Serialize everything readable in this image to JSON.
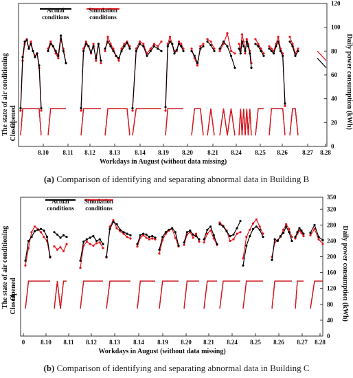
{
  "chart_data": [
    {
      "type": "line",
      "panel_id": "a",
      "caption_tag": "(a)",
      "caption_text": " Comparison of identifying and separating abnormal data in Building B",
      "xlabel": "Workdays in August (without data missing)",
      "ylabel": "Daily power consumption (kWh)",
      "state_label": "The state of air conditioning",
      "state_levels": [
        "Closed",
        "Opened"
      ],
      "x_tick_labels": [
        "8.10",
        "8.11",
        "8.12",
        "8.13",
        "8.14",
        "8.19",
        "8.20",
        "8.21",
        "8.24",
        "8.25",
        "8.26",
        "8.27",
        "8.28"
      ],
      "y_ticks": [
        0,
        20,
        40,
        60,
        80,
        100,
        120
      ],
      "ylim": [
        0,
        120
      ],
      "legend": [
        "Actual conditions",
        "Simulation conditions"
      ],
      "series_colors": {
        "actual": "#000000",
        "simulation": "#e8141c"
      },
      "day_power": {
        "actual": [
          [
            32,
            75,
            88,
            89,
            82,
            86,
            80,
            75,
            78,
            68,
            32
          ],
          [
            80,
            86,
            84,
            80,
            76,
            93,
            80,
            70
          ],
          [
            32,
            80,
            86,
            84,
            79,
            84,
            74,
            86,
            72
          ],
          [
            82,
            88,
            84,
            80,
            76,
            74,
            80,
            84,
            87,
            82
          ],
          [
            32,
            80,
            86,
            84,
            76,
            80,
            84,
            82,
            80
          ],
          [
            33,
            84,
            88,
            86,
            78,
            81,
            86,
            84,
            80
          ],
          [
            80,
            76,
            70,
            82,
            84
          ],
          [
            88,
            85,
            80
          ],
          [
            82,
            88,
            84,
            76,
            66
          ],
          [
            82,
            78,
            88,
            84,
            80,
            88,
            84,
            78,
            66
          ],
          [
            86,
            84,
            80,
            76
          ],
          [
            82,
            80,
            78,
            84,
            88,
            80,
            76,
            36
          ],
          [
            88,
            84,
            76,
            80
          ]
        ],
        "simulation": [
          [
            30,
            72,
            86,
            90,
            82,
            88,
            80,
            76,
            78,
            66,
            30
          ],
          [
            82,
            88,
            84,
            78,
            74,
            90,
            82,
            70
          ],
          [
            30,
            82,
            88,
            84,
            78,
            86,
            72,
            86,
            70
          ],
          [
            80,
            92,
            86,
            82,
            76,
            72,
            82,
            86,
            88,
            84
          ],
          [
            30,
            82,
            88,
            86,
            78,
            82,
            86,
            84,
            88
          ],
          [
            30,
            86,
            92,
            86,
            80,
            80,
            88,
            86,
            82
          ],
          [
            82,
            74,
            68,
            84,
            86
          ],
          [
            90,
            88,
            82
          ],
          [
            80,
            86,
            95,
            80,
            78
          ],
          [
            86,
            80,
            94,
            88,
            78,
            90,
            86,
            80,
            70
          ],
          [
            90,
            86,
            82,
            78
          ],
          [
            84,
            82,
            80,
            86,
            92,
            82,
            78,
            34
          ],
          [
            92,
            86,
            78,
            82
          ]
        ],
        "tail_actual": [
          74,
          66
        ],
        "tail_simulation": [
          80,
          72
        ]
      },
      "states": {
        "actual": [
          [
            0,
            1,
            1,
            1,
            1,
            1,
            1,
            1,
            1,
            1,
            0
          ],
          [
            0,
            1,
            1,
            1,
            1,
            1,
            1,
            1
          ],
          [
            0,
            1,
            1,
            1,
            1,
            1,
            1,
            1,
            1
          ],
          [
            0,
            1,
            1,
            1,
            1,
            1,
            1,
            1,
            1,
            0
          ],
          [
            0,
            1,
            1,
            1,
            1,
            1,
            1,
            1,
            1
          ],
          [
            0,
            1,
            1,
            1,
            1,
            1,
            1,
            1,
            1
          ],
          [
            0,
            1,
            1,
            1,
            0
          ],
          [
            0,
            1,
            0
          ],
          [
            0,
            1,
            0,
            1,
            0
          ],
          [
            0,
            1,
            0,
            1,
            0,
            1,
            0,
            1,
            0
          ],
          [
            0,
            1,
            1,
            1
          ],
          [
            0,
            1,
            1,
            1,
            1,
            1,
            1,
            0
          ],
          [
            0,
            1,
            1,
            0
          ]
        ],
        "simulation": [
          [
            0,
            1,
            1,
            1,
            1,
            1,
            1,
            1,
            1,
            1,
            0
          ],
          [
            0,
            1,
            1,
            1,
            1,
            1,
            1,
            1
          ],
          [
            0,
            1,
            1,
            1,
            1,
            1,
            1,
            1,
            1
          ],
          [
            0,
            1,
            1,
            1,
            1,
            1,
            1,
            1,
            1,
            0
          ],
          [
            0,
            1,
            1,
            1,
            1,
            1,
            1,
            1,
            1
          ],
          [
            0,
            1,
            1,
            1,
            1,
            1,
            1,
            1,
            1
          ],
          [
            0,
            1,
            1,
            1,
            0
          ],
          [
            0,
            1,
            0
          ],
          [
            0,
            1,
            0,
            1,
            0
          ],
          [
            0,
            1,
            0,
            1,
            0,
            1,
            0,
            1,
            0
          ],
          [
            0,
            1,
            1,
            1
          ],
          [
            0,
            1,
            1,
            1,
            1,
            1,
            1,
            0
          ],
          [
            0,
            1,
            1,
            0
          ]
        ]
      }
    },
    {
      "type": "line",
      "panel_id": "b",
      "caption_tag": "(b)",
      "caption_text": " Comparison of identifying and separating abnormal data in Building C",
      "xlabel": "Workdays in August (without data missing)",
      "ylabel": "Daily power consumption (kWh)",
      "state_label": "The state of air conditioning",
      "state_levels": [
        "Closed",
        "Opened"
      ],
      "x_tick_labels": [
        "0",
        "8.10",
        "8.11",
        "8.12",
        "8.13",
        "8.14",
        "8.19",
        "8.20",
        "8.21",
        "8.24",
        "8.25",
        "8.26",
        "8.27",
        "8.28"
      ],
      "y_ticks": [
        0,
        40,
        80,
        120,
        160,
        200,
        240,
        280,
        320,
        350
      ],
      "ylim": [
        0,
        350
      ],
      "legend": [
        "Actual conditions",
        "Simulation conditions"
      ],
      "series_colors": {
        "actual": "#000000",
        "simulation": "#e8141c"
      },
      "day_power": {
        "actual": [
          [
            190,
            240,
            250,
            264,
            268,
            270,
            266,
            250,
            200
          ],
          [
            262,
            256,
            248,
            254,
            250
          ],
          [
            190,
            238,
            244,
            248,
            252,
            240,
            244,
            232
          ],
          [
            200,
            270,
            288,
            282,
            268,
            262,
            258,
            254
          ],
          [
            232,
            254,
            258,
            256,
            250,
            252,
            248
          ],
          [
            218,
            250,
            262,
            268,
            272,
            262,
            228
          ],
          [
            236,
            262,
            266,
            256,
            252,
            244
          ],
          [
            244,
            268,
            276,
            254,
            232
          ],
          [
            282,
            276,
            264,
            252,
            256,
            272,
            290
          ],
          [
            178,
            228,
            252,
            270,
            276,
            268,
            250
          ],
          [
            192,
            244,
            240,
            252,
            260,
            276,
            262,
            240
          ],
          [
            250,
            262,
            272,
            266,
            258
          ],
          [
            260,
            280,
            250,
            242
          ]
        ],
        "simulation": [
          [
            178,
            222,
            262,
            276,
            270,
            262,
            250,
            240,
            198
          ],
          [
            226,
            218,
            224,
            214,
            232
          ],
          [
            172,
            228,
            238,
            232,
            228,
            234,
            236,
            222
          ],
          [
            198,
            276,
            292,
            272,
            264,
            258,
            250,
            246
          ],
          [
            226,
            248,
            254,
            248,
            244,
            246,
            244
          ],
          [
            208,
            242,
            258,
            266,
            270,
            248,
            226
          ],
          [
            230,
            256,
            262,
            248,
            258,
            238
          ],
          [
            236,
            258,
            266,
            246,
            230
          ],
          [
            286,
            278,
            266,
            240,
            244,
            258,
            262
          ],
          [
            196,
            250,
            268,
            284,
            294,
            276,
            258
          ],
          [
            200,
            236,
            242,
            250,
            268,
            282,
            270,
            250
          ],
          [
            246,
            258,
            266,
            260,
            252
          ],
          [
            254,
            270,
            244,
            232
          ]
        ]
      },
      "states": {
        "actual": [
          [
            0,
            1,
            1,
            1,
            1,
            1,
            1,
            1,
            1
          ],
          [
            0,
            1,
            0,
            1,
            1
          ],
          [
            0,
            1,
            1,
            1,
            1,
            1,
            1,
            1
          ],
          [
            0,
            1,
            1,
            1,
            1,
            1,
            1,
            1
          ],
          [
            0,
            1,
            1,
            1,
            1,
            1,
            1
          ],
          [
            0,
            1,
            1,
            1,
            1,
            1,
            1
          ],
          [
            0,
            1,
            1,
            1,
            1,
            1
          ],
          [
            0,
            1,
            1,
            1,
            1
          ],
          [
            0,
            1,
            1,
            1,
            1,
            1,
            1
          ],
          [
            0,
            1,
            1,
            1,
            1,
            1,
            1
          ],
          [
            0,
            1,
            1,
            1,
            1,
            1,
            1,
            1
          ],
          [
            0,
            1,
            1,
            1,
            1
          ],
          [
            0,
            1,
            1,
            1
          ]
        ],
        "simulation": [
          [
            0,
            1,
            1,
            1,
            1,
            1,
            1,
            1,
            1
          ],
          [
            0,
            1,
            0,
            1,
            1
          ],
          [
            0,
            1,
            1,
            1,
            1,
            1,
            1,
            1
          ],
          [
            0,
            1,
            1,
            1,
            1,
            1,
            1,
            1
          ],
          [
            0,
            1,
            1,
            1,
            1,
            1,
            1
          ],
          [
            0,
            1,
            1,
            1,
            1,
            1,
            1
          ],
          [
            0,
            1,
            1,
            1,
            1,
            1
          ],
          [
            0,
            1,
            1,
            1,
            1
          ],
          [
            0,
            1,
            1,
            1,
            1,
            1,
            1
          ],
          [
            0,
            1,
            1,
            1,
            1,
            1,
            1
          ],
          [
            0,
            1,
            1,
            1,
            1,
            1,
            1,
            1
          ],
          [
            0,
            1,
            1,
            1,
            1
          ],
          [
            0,
            1,
            1,
            1
          ]
        ]
      }
    }
  ]
}
